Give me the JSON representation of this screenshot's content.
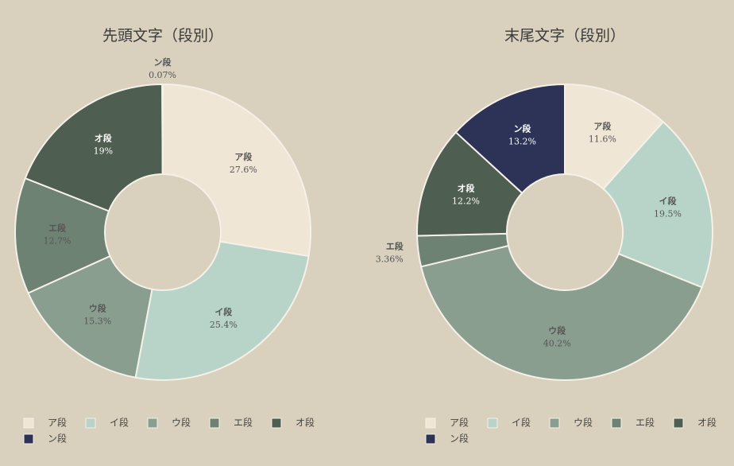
{
  "chart_data": [
    {
      "type": "pie",
      "title": "先頭文字（段別）",
      "categories": [
        "ア段",
        "イ段",
        "ウ段",
        "エ段",
        "オ段",
        "ン段"
      ],
      "values": [
        27.6,
        25.4,
        15.3,
        12.7,
        19,
        0.07
      ],
      "value_labels": [
        "27.6%",
        "25.4%",
        "15.3%",
        "12.7%",
        "19%",
        "0.07%"
      ],
      "colors": [
        "#f0e6d6",
        "#b8d4c8",
        "#8a9e90",
        "#6e8274",
        "#4e5e50",
        "#2c3356"
      ]
    },
    {
      "type": "pie",
      "title": "末尾文字（段別）",
      "categories": [
        "ア段",
        "イ段",
        "ウ段",
        "エ段",
        "オ段",
        "ン段"
      ],
      "values": [
        11.6,
        19.5,
        40.2,
        3.36,
        12.2,
        13.2
      ],
      "value_labels": [
        "11.6%",
        "19.5%",
        "40.2%",
        "3.36%",
        "12.2%",
        "13.2%"
      ],
      "colors": [
        "#f0e6d6",
        "#b8d4c8",
        "#8a9e90",
        "#6e8274",
        "#4e5e50",
        "#2c3356"
      ]
    }
  ]
}
